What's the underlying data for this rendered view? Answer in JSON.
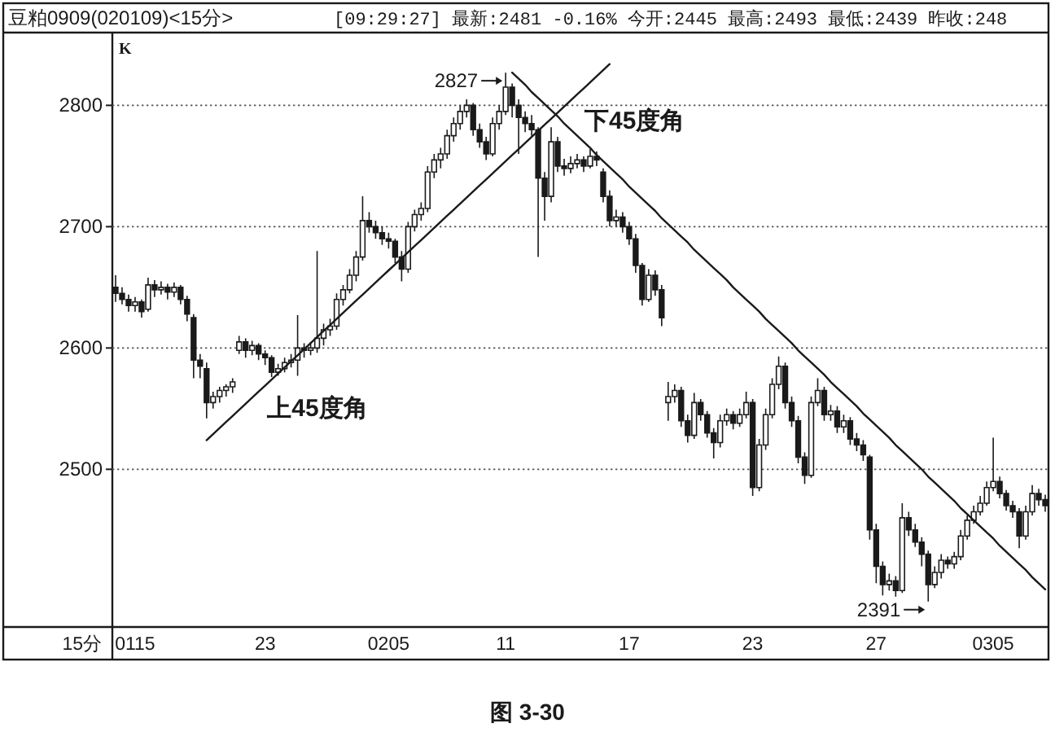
{
  "chart_data": {
    "type": "candlestick",
    "title": "豆粕0909(020109)<15分>",
    "subtitle": "[09:29:27] 最新:2481 -0.16% 今开:2445 最高:2493 最低:2439 昨收:248",
    "xlabel": "15分",
    "ylabel": "K",
    "annotations": [
      {
        "text": "2827",
        "x": "11",
        "y": 2827
      },
      {
        "text": "2391",
        "y": 2391
      },
      "图 3-30"
    ],
    "color": "#1a1a1a",
    "categories": [
      null,
      null,
      null,
      "0115",
      null,
      null,
      null,
      null,
      null,
      null,
      null,
      null,
      null,
      null,
      null,
      null,
      null,
      null,
      null,
      null,
      null,
      null,
      null,
      "23",
      null,
      null,
      null,
      null,
      null,
      null,
      null,
      null,
      null,
      null,
      null,
      null,
      null,
      null,
      null,
      null,
      null,
      null,
      "0205",
      null,
      null,
      null,
      null,
      null,
      null,
      null,
      null,
      null,
      null,
      null,
      null,
      null,
      null,
      null,
      null,
      null,
      "11",
      null,
      null,
      null,
      null,
      null,
      null,
      null,
      null,
      null,
      null,
      null,
      null,
      null,
      null,
      null,
      null,
      null,
      null,
      "17",
      null,
      null,
      null,
      null,
      null,
      null,
      null,
      null,
      null,
      null,
      null,
      null,
      null,
      null,
      null,
      null,
      null,
      null,
      "23",
      null,
      null,
      null,
      null,
      null,
      null,
      null,
      null,
      null,
      null,
      null,
      null,
      null,
      null,
      null,
      null,
      null,
      null,
      "27",
      null,
      null,
      null,
      null,
      null,
      null,
      null,
      null,
      null,
      null,
      null,
      null,
      null,
      null,
      null,
      null,
      null,
      "0305",
      null,
      null,
      null,
      null,
      null,
      null,
      null,
      null
    ],
    "ohlc": [
      [
        2650,
        2660,
        2638,
        2645
      ],
      [
        2645,
        2650,
        2636,
        2640
      ],
      [
        2640,
        2644,
        2630,
        2635
      ],
      [
        2635,
        2642,
        2630,
        2638
      ],
      [
        2638,
        2640,
        2625,
        2630
      ],
      [
        2632,
        2658,
        2630,
        2652
      ],
      [
        2652,
        2656,
        2642,
        2648
      ],
      [
        2648,
        2655,
        2644,
        2650
      ],
      [
        2650,
        2653,
        2640,
        2646
      ],
      [
        2646,
        2654,
        2642,
        2650
      ],
      [
        2650,
        2652,
        2636,
        2640
      ],
      [
        2640,
        2643,
        2622,
        2628
      ],
      [
        2625,
        2628,
        2575,
        2590
      ],
      [
        2590,
        2595,
        2575,
        2585
      ],
      [
        2583,
        2588,
        2542,
        2555
      ],
      [
        2555,
        2564,
        2550,
        2560
      ],
      [
        2560,
        2568,
        2555,
        2565
      ],
      [
        2565,
        2570,
        2560,
        2568
      ],
      [
        2568,
        2575,
        2563,
        2572
      ],
      [
        2598,
        2610,
        2595,
        2605
      ],
      [
        2605,
        2608,
        2592,
        2598
      ],
      [
        2598,
        2606,
        2594,
        2602
      ],
      [
        2602,
        2604,
        2590,
        2595
      ],
      [
        2595,
        2598,
        2586,
        2592
      ],
      [
        2592,
        2594,
        2576,
        2580
      ],
      [
        2580,
        2587,
        2577,
        2583
      ],
      [
        2583,
        2592,
        2580,
        2588
      ],
      [
        2588,
        2595,
        2584,
        2590
      ],
      [
        2590,
        2627,
        2577,
        2600
      ],
      [
        2600,
        2604,
        2592,
        2598
      ],
      [
        2598,
        2605,
        2594,
        2600
      ],
      [
        2600,
        2680,
        2596,
        2608
      ],
      [
        2608,
        2620,
        2602,
        2615
      ],
      [
        2615,
        2624,
        2610,
        2618
      ],
      [
        2618,
        2645,
        2615,
        2640
      ],
      [
        2640,
        2652,
        2635,
        2648
      ],
      [
        2648,
        2665,
        2645,
        2660
      ],
      [
        2660,
        2680,
        2655,
        2675
      ],
      [
        2675,
        2725,
        2672,
        2705
      ],
      [
        2705,
        2712,
        2695,
        2700
      ],
      [
        2700,
        2705,
        2690,
        2695
      ],
      [
        2695,
        2700,
        2685,
        2690
      ],
      [
        2690,
        2695,
        2682,
        2688
      ],
      [
        2688,
        2690,
        2670,
        2675
      ],
      [
        2675,
        2680,
        2655,
        2665
      ],
      [
        2665,
        2704,
        2662,
        2700
      ],
      [
        2700,
        2714,
        2696,
        2710
      ],
      [
        2710,
        2720,
        2705,
        2715
      ],
      [
        2715,
        2750,
        2712,
        2745
      ],
      [
        2745,
        2760,
        2740,
        2755
      ],
      [
        2755,
        2765,
        2748,
        2760
      ],
      [
        2760,
        2780,
        2756,
        2775
      ],
      [
        2775,
        2790,
        2770,
        2785
      ],
      [
        2785,
        2800,
        2780,
        2795
      ],
      [
        2795,
        2805,
        2790,
        2800
      ],
      [
        2800,
        2802,
        2775,
        2780
      ],
      [
        2780,
        2785,
        2765,
        2770
      ],
      [
        2770,
        2774,
        2755,
        2760
      ],
      [
        2760,
        2790,
        2758,
        2785
      ],
      [
        2785,
        2800,
        2780,
        2795
      ],
      [
        2795,
        2827,
        2792,
        2815
      ],
      [
        2815,
        2818,
        2790,
        2800
      ],
      [
        2800,
        2805,
        2760,
        2790
      ],
      [
        2790,
        2795,
        2778,
        2785
      ],
      [
        2785,
        2792,
        2775,
        2780
      ],
      [
        2780,
        2782,
        2675,
        2740
      ],
      [
        2740,
        2745,
        2705,
        2725
      ],
      [
        2725,
        2782,
        2720,
        2770
      ],
      [
        2770,
        2774,
        2745,
        2750
      ],
      [
        2750,
        2756,
        2742,
        2748
      ],
      [
        2748,
        2758,
        2744,
        2752
      ],
      [
        2752,
        2760,
        2748,
        2755
      ],
      [
        2755,
        2758,
        2745,
        2750
      ],
      [
        2750,
        2764,
        2748,
        2758
      ],
      [
        2758,
        2762,
        2750,
        2755
      ],
      [
        2745,
        2748,
        2720,
        2725
      ],
      [
        2725,
        2730,
        2700,
        2705
      ],
      [
        2705,
        2714,
        2700,
        2708
      ],
      [
        2708,
        2712,
        2695,
        2700
      ],
      [
        2700,
        2704,
        2685,
        2690
      ],
      [
        2690,
        2694,
        2662,
        2668
      ],
      [
        2668,
        2670,
        2635,
        2640
      ],
      [
        2640,
        2665,
        2638,
        2660
      ],
      [
        2660,
        2664,
        2643,
        2648
      ],
      [
        2648,
        2652,
        2618,
        2625
      ],
      [
        2555,
        2572,
        2540,
        2560
      ],
      [
        2560,
        2570,
        2555,
        2565
      ],
      [
        2565,
        2568,
        2535,
        2540
      ],
      [
        2540,
        2545,
        2522,
        2528
      ],
      [
        2528,
        2563,
        2525,
        2555
      ],
      [
        2555,
        2558,
        2540,
        2545
      ],
      [
        2545,
        2548,
        2526,
        2530
      ],
      [
        2530,
        2534,
        2509,
        2522
      ],
      [
        2522,
        2545,
        2518,
        2540
      ],
      [
        2540,
        2550,
        2536,
        2545
      ],
      [
        2545,
        2548,
        2533,
        2538
      ],
      [
        2538,
        2550,
        2535,
        2545
      ],
      [
        2545,
        2564,
        2542,
        2555
      ],
      [
        2555,
        2558,
        2478,
        2485
      ],
      [
        2485,
        2525,
        2482,
        2520
      ],
      [
        2520,
        2550,
        2516,
        2545
      ],
      [
        2545,
        2575,
        2542,
        2570
      ],
      [
        2570,
        2593,
        2566,
        2585
      ],
      [
        2585,
        2588,
        2550,
        2555
      ],
      [
        2555,
        2560,
        2535,
        2540
      ],
      [
        2540,
        2544,
        2505,
        2510
      ],
      [
        2510,
        2514,
        2488,
        2495
      ],
      [
        2495,
        2560,
        2493,
        2555
      ],
      [
        2555,
        2575,
        2552,
        2565
      ],
      [
        2565,
        2568,
        2540,
        2545
      ],
      [
        2545,
        2553,
        2540,
        2548
      ],
      [
        2548,
        2552,
        2530,
        2535
      ],
      [
        2535,
        2545,
        2530,
        2540
      ],
      [
        2540,
        2543,
        2520,
        2525
      ],
      [
        2525,
        2530,
        2515,
        2520
      ],
      [
        2520,
        2524,
        2507,
        2512
      ],
      [
        2510,
        2512,
        2442,
        2450
      ],
      [
        2450,
        2455,
        2406,
        2420
      ],
      [
        2420,
        2424,
        2396,
        2405
      ],
      [
        2405,
        2414,
        2400,
        2408
      ],
      [
        2408,
        2412,
        2395,
        2400
      ],
      [
        2400,
        2472,
        2398,
        2460
      ],
      [
        2460,
        2465,
        2445,
        2450
      ],
      [
        2450,
        2455,
        2436,
        2440
      ],
      [
        2440,
        2444,
        2420,
        2430
      ],
      [
        2430,
        2433,
        2391,
        2405
      ],
      [
        2405,
        2420,
        2402,
        2415
      ],
      [
        2415,
        2430,
        2410,
        2425
      ],
      [
        2425,
        2428,
        2418,
        2422
      ],
      [
        2422,
        2432,
        2418,
        2428
      ],
      [
        2428,
        2450,
        2425,
        2445
      ],
      [
        2445,
        2462,
        2442,
        2458
      ],
      [
        2458,
        2470,
        2455,
        2465
      ],
      [
        2465,
        2478,
        2462,
        2472
      ],
      [
        2472,
        2490,
        2470,
        2485
      ],
      [
        2485,
        2526,
        2482,
        2490
      ],
      [
        2490,
        2494,
        2476,
        2480
      ],
      [
        2480,
        2483,
        2466,
        2470
      ],
      [
        2470,
        2474,
        2460,
        2465
      ],
      [
        2465,
        2468,
        2435,
        2445
      ],
      [
        2445,
        2470,
        2442,
        2465
      ],
      [
        2465,
        2487,
        2462,
        2480
      ],
      [
        2480,
        2484,
        2470,
        2475
      ],
      [
        2475,
        2479,
        2465,
        2470
      ]
    ],
    "series": [
      {
        "type": "line",
        "name": "上45度角",
        "color": "#1a1a1a",
        "values": [
          null,
          null,
          null,
          null,
          null,
          null,
          null,
          null,
          null,
          null,
          null,
          null,
          null,
          null,
          2524,
          2529,
          2534,
          2539,
          2544,
          2549,
          2554,
          2559,
          2564,
          2569,
          2574,
          2579,
          2584,
          2589,
          2594,
          2599,
          2604,
          2609,
          2614,
          2619,
          2624,
          2629,
          2634,
          2639,
          2644,
          2649,
          2654,
          2659,
          2664,
          2669,
          2674,
          2679,
          2684,
          2689,
          2694,
          2699,
          2704,
          2709,
          2714,
          2719,
          2724,
          2729,
          2734,
          2739,
          2744,
          2749,
          2754,
          2759,
          2764,
          2769,
          2774,
          2779,
          2784,
          2789,
          2794,
          2799,
          2804,
          2809,
          2814,
          2819,
          2824,
          2829,
          2834,
          null,
          null,
          null,
          null,
          null,
          null,
          null,
          null,
          null,
          null,
          null,
          null,
          null,
          null,
          null,
          null,
          null,
          null,
          null,
          null,
          null,
          null,
          null,
          null,
          null,
          null,
          null,
          null,
          null,
          null,
          null,
          null,
          null,
          null,
          null,
          null,
          null,
          null,
          null,
          null,
          null,
          null,
          null,
          null,
          null,
          null,
          null,
          null,
          null,
          null,
          null,
          null,
          null,
          null,
          null,
          null,
          null,
          null,
          null,
          null,
          null,
          null,
          null,
          null,
          null,
          null,
          null
        ]
      },
      {
        "type": "line",
        "name": "下45度角",
        "color": "#1a1a1a",
        "values": [
          null,
          null,
          null,
          null,
          null,
          null,
          null,
          null,
          null,
          null,
          null,
          null,
          null,
          null,
          null,
          null,
          null,
          null,
          null,
          null,
          null,
          null,
          null,
          null,
          null,
          null,
          null,
          null,
          null,
          null,
          null,
          null,
          null,
          null,
          null,
          null,
          null,
          null,
          null,
          null,
          null,
          null,
          null,
          null,
          null,
          null,
          null,
          null,
          null,
          null,
          null,
          null,
          null,
          null,
          null,
          null,
          null,
          null,
          null,
          null,
          null,
          2827,
          2822,
          2817,
          2811,
          2806,
          2801,
          2796,
          2791,
          2785,
          2780,
          2775,
          2770,
          2765,
          2759,
          2754,
          2749,
          2744,
          2739,
          2733,
          2728,
          2723,
          2718,
          2713,
          2707,
          2702,
          2697,
          2692,
          2687,
          2681,
          2676,
          2671,
          2666,
          2661,
          2656,
          2650,
          2645,
          2640,
          2635,
          2630,
          2624,
          2619,
          2614,
          2609,
          2604,
          2598,
          2593,
          2588,
          2583,
          2578,
          2572,
          2567,
          2562,
          2557,
          2552,
          2546,
          2541,
          2536,
          2531,
          2526,
          2520,
          2515,
          2510,
          2505,
          2500,
          2494,
          2489,
          2484,
          2479,
          2474,
          2468,
          2463,
          2458,
          2453,
          2448,
          2443,
          2437,
          2432,
          2427,
          2422,
          2417,
          2411,
          2406,
          2401
        ]
      }
    ],
    "ylim": [
      2370,
      2860
    ],
    "yticks": [
      2500,
      2600,
      2700,
      2800
    ],
    "grid": "y"
  }
}
